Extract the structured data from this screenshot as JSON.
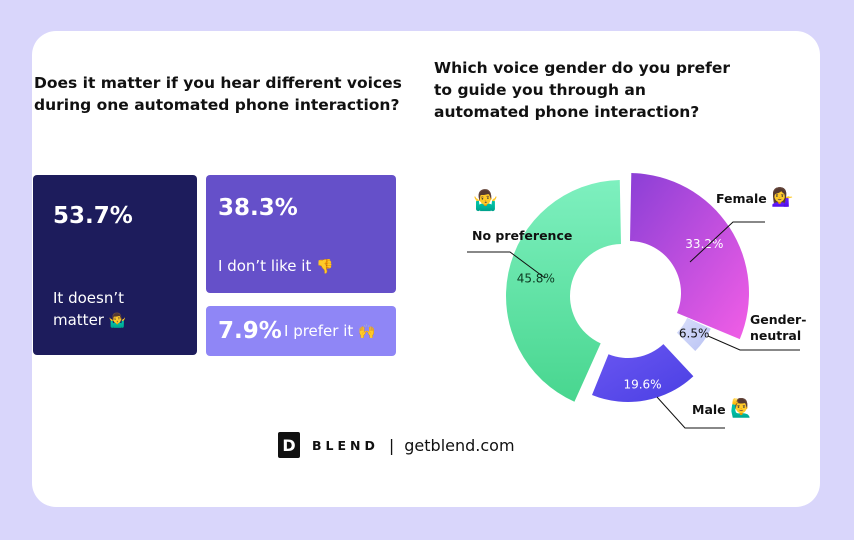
{
  "left_panel": {
    "question": "Does it matter if you hear different voices during one automated phone interaction?",
    "tiles": [
      {
        "pct": "53.7%",
        "label": "It doesn’t matter",
        "emoji": "🤷‍♂️",
        "color": "#1d1c5c"
      },
      {
        "pct": "38.3%",
        "label": "I don’t like it",
        "emoji": "👎",
        "color": "#6550c9"
      },
      {
        "pct": "7.9%",
        "label": "I prefer it",
        "emoji": "🙌",
        "color": "#8f86f6"
      }
    ]
  },
  "right_panel": {
    "question": "Which voice gender do you prefer to guide you through an automated phone interaction?",
    "labels": {
      "female": "Female",
      "gender_neutral_1": "Gender-",
      "gender_neutral_2": "neutral",
      "male": "Male",
      "no_preference": "No preference"
    },
    "emojis": {
      "female": "💁‍♀️",
      "male": "🙋‍♂️",
      "no_preference": "🤷‍♂️"
    }
  },
  "chart_data": {
    "type": "pie",
    "title": "Which voice gender do you prefer to guide you through an automated phone interaction?",
    "categories": [
      "Female",
      "Gender-neutral",
      "Male",
      "No preference"
    ],
    "values": [
      33.2,
      6.5,
      19.6,
      45.8
    ],
    "value_labels": [
      "33.2%",
      "6.5%",
      "19.6%",
      "45.8%"
    ],
    "colors": [
      "#c451e3",
      "#c9d0f5",
      "#5b50ef",
      "#5be0a4"
    ]
  },
  "footer": {
    "logo_letter": "D",
    "brand": "BLEND",
    "separator": "|",
    "url": "getblend.com"
  }
}
